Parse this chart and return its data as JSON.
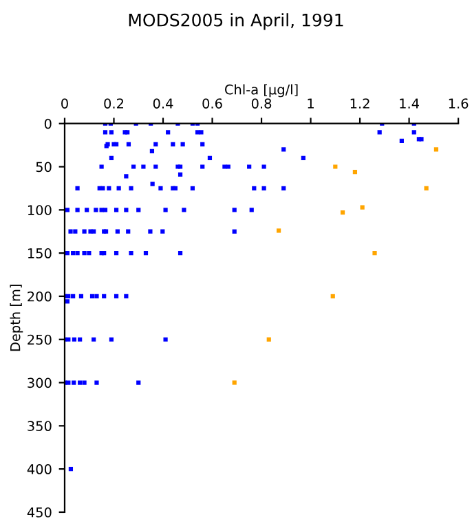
{
  "chart_data": {
    "type": "scatter",
    "title": "MODS2005 in April, 1991",
    "xlabel": "Chl-a [μg/l]",
    "ylabel": "Depth [m]",
    "xlim": [
      0,
      1.6
    ],
    "xticks": [
      0,
      0.2,
      0.4,
      0.6,
      0.8,
      1,
      1.2,
      1.4,
      1.6
    ],
    "ylim": [
      450,
      0
    ],
    "yticks": [
      0,
      50,
      100,
      150,
      200,
      250,
      300,
      350,
      400,
      450
    ],
    "marker": "square",
    "series": [
      {
        "color": "#0000ff",
        "x": [
          0.165,
          0.187,
          0.29,
          0.35,
          0.46,
          0.52,
          0.54,
          1.29,
          1.42,
          0.165,
          0.19,
          0.245,
          0.255,
          0.42,
          0.54,
          0.555,
          1.28,
          1.42,
          1.37,
          1.44,
          1.45,
          0.175,
          0.2,
          0.21,
          0.26,
          0.37,
          0.44,
          0.48,
          0.56,
          0.17,
          0.89,
          0.355,
          0.19,
          0.59,
          0.97,
          0.15,
          0.28,
          0.32,
          0.37,
          0.46,
          0.47,
          0.56,
          0.65,
          0.665,
          0.75,
          0.81,
          0.47,
          0.25,
          0.357,
          0.052,
          0.142,
          0.155,
          0.18,
          0.22,
          0.27,
          0.39,
          0.44,
          0.45,
          0.52,
          0.77,
          0.81,
          0.89,
          0.011,
          0.052,
          0.09,
          0.127,
          0.15,
          0.165,
          0.21,
          0.25,
          0.3,
          0.41,
          0.485,
          0.69,
          0.76,
          0.024,
          0.043,
          0.08,
          0.105,
          0.118,
          0.16,
          0.168,
          0.215,
          0.258,
          0.348,
          0.398,
          0.69,
          0.011,
          0.034,
          0.052,
          0.08,
          0.099,
          0.15,
          0.16,
          0.21,
          0.27,
          0.33,
          0.47,
          0.0,
          0.015,
          0.034,
          0.067,
          0.112,
          0.13,
          0.16,
          0.21,
          0.25,
          0.011,
          0.0,
          0.015,
          0.039,
          0.062,
          0.118,
          0.19,
          0.41,
          0.0,
          0.015,
          0.037,
          0.062,
          0.08,
          0.13,
          0.3,
          0.025
        ],
        "values": [
          0,
          0,
          0,
          0,
          0,
          0,
          0,
          0,
          0,
          10,
          10,
          10,
          10,
          10,
          10,
          10,
          10,
          10,
          20,
          18,
          18,
          24,
          24,
          24,
          24,
          24,
          24,
          24,
          24,
          26,
          30,
          32,
          40,
          40,
          40,
          50,
          50,
          50,
          50,
          50,
          50,
          50,
          50,
          50,
          50,
          50,
          59,
          61,
          70,
          75,
          75,
          75,
          75,
          75,
          75,
          75,
          75,
          75,
          75,
          75,
          75,
          75,
          100,
          100,
          100,
          100,
          100,
          100,
          100,
          100,
          100,
          100,
          100,
          100,
          100,
          125,
          125,
          125,
          125,
          125,
          125,
          125,
          125,
          125,
          125,
          125,
          125,
          150,
          150,
          150,
          150,
          150,
          150,
          150,
          150,
          150,
          150,
          150,
          200,
          200,
          200,
          200,
          200,
          200,
          200,
          200,
          200,
          206,
          250,
          250,
          250,
          250,
          250,
          250,
          250,
          300,
          300,
          300,
          300,
          300,
          300,
          300,
          400
        ]
      },
      {
        "color": "#ffa500",
        "x": [
          1.51,
          1.1,
          1.18,
          1.47,
          1.13,
          1.21,
          0.87,
          1.26,
          1.09,
          0.83,
          0.69
        ],
        "values": [
          30,
          50,
          56,
          75,
          103,
          97,
          124,
          150,
          200,
          250,
          300
        ]
      }
    ]
  }
}
